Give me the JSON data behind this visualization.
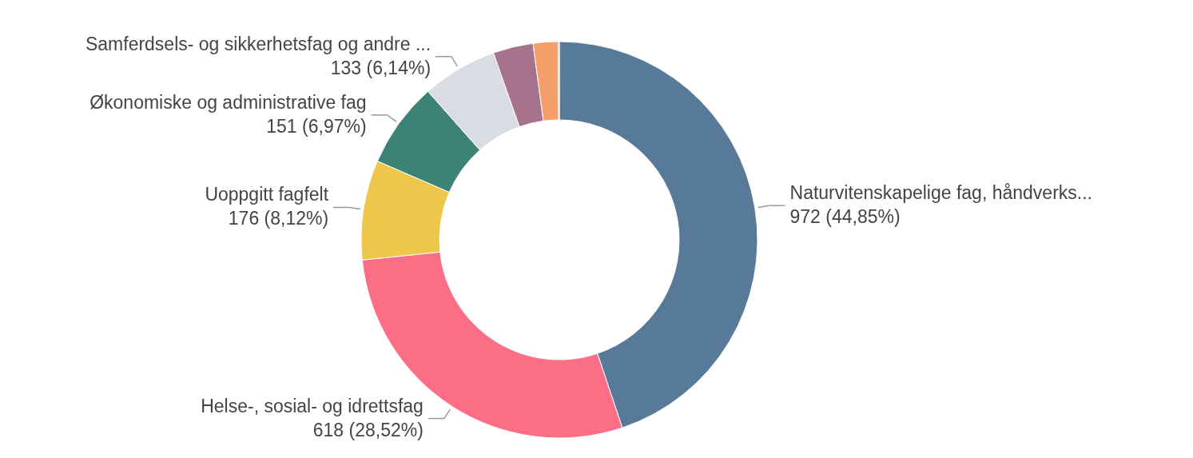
{
  "chart_data": {
    "type": "donut",
    "categories": [
      "Naturvitenskapelige fag, håndverks...",
      "Helse-, sosial- og idrettsfag",
      "Uoppgitt fagfelt",
      "Økonomiske og administrative fag",
      "Samferdsels- og sikkerhetsfag og andre ...",
      null,
      null,
      null
    ],
    "values": [
      972,
      618,
      176,
      151,
      133,
      71,
      44,
      2
    ],
    "value_labels": [
      "972 (44,85%)",
      "618 (28,52%)",
      "176 (8,12%)",
      "151 (6,97%)",
      "133 (6,14%)",
      null,
      null,
      null
    ],
    "colors": [
      "#587a99",
      "#fc6e85",
      "#eec64a",
      "#3d8277",
      "#d9dde3",
      "#a6728c",
      "#f5a06b",
      "#c9b458"
    ]
  }
}
